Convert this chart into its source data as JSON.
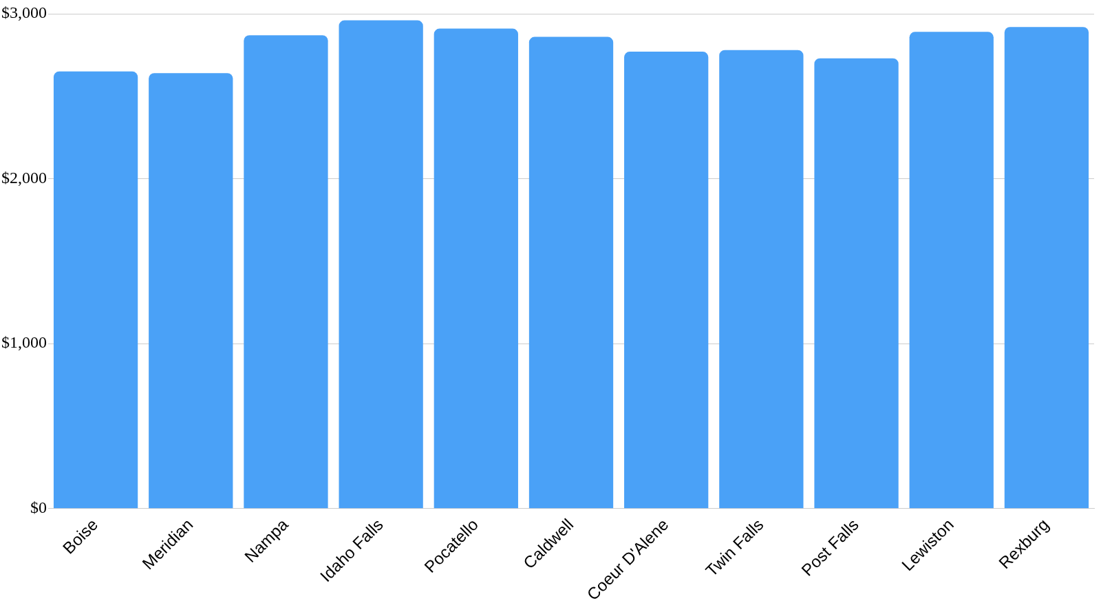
{
  "chart_data": {
    "type": "bar",
    "categories": [
      "Boise",
      "Meridian",
      "Nampa",
      "Idaho Falls",
      "Pocatello",
      "Caldwell",
      "Coeur D'Alene",
      "Twin Falls",
      "Post Falls",
      "Lewiston",
      "Rexburg"
    ],
    "values": [
      2650,
      2640,
      2870,
      2960,
      2910,
      2860,
      2770,
      2780,
      2730,
      2890,
      2920
    ],
    "color": "#4aa1f7",
    "ylim": [
      0,
      3000
    ],
    "yticks": [
      {
        "value": 0,
        "label": "$0"
      },
      {
        "value": 1000,
        "label": "$1,000"
      },
      {
        "value": 2000,
        "label": "$2,000"
      },
      {
        "value": 3000,
        "label": "$3,000"
      }
    ],
    "grid": "y"
  }
}
